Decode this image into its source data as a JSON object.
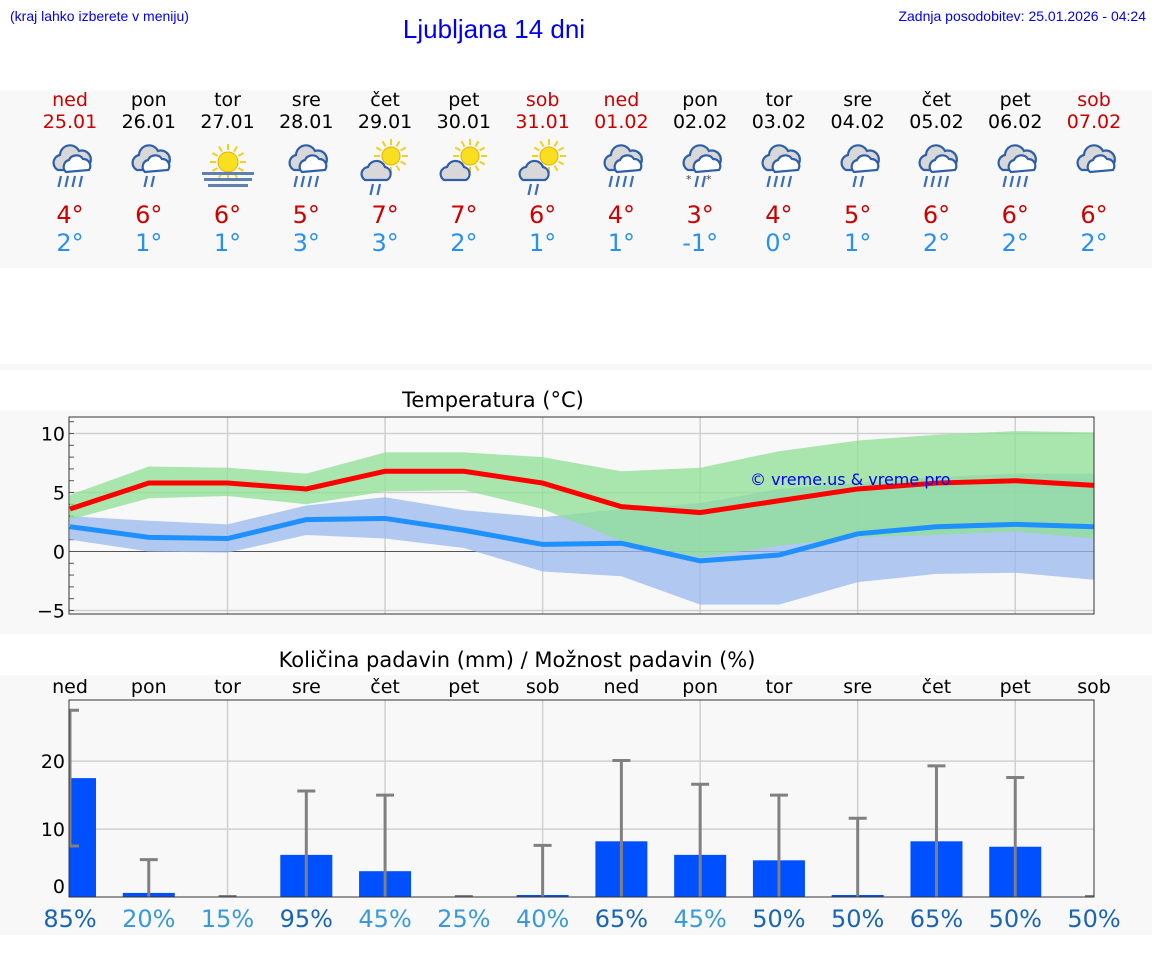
{
  "header": {
    "note": "(kraj lahko izberete v meniju)",
    "title": "Ljubljana 14 dni",
    "updated": "Zadnja posodobitev: 25.01.2026 - 04:24"
  },
  "colors": {
    "weekend": "#cc0000",
    "max": "#ff0000",
    "min": "#1e90ff",
    "max_band": "#acebaf",
    "min_band": "#aec8f2",
    "bar": "#0050ff",
    "error": "#808080",
    "link": "#0000ee"
  },
  "days": [
    {
      "name": "ned",
      "date": "25.01",
      "weekend": true,
      "icon": "heavy-rain",
      "max": "4°",
      "min": "2°"
    },
    {
      "name": "pon",
      "date": "26.01",
      "weekend": false,
      "icon": "rain",
      "max": "6°",
      "min": "1°"
    },
    {
      "name": "tor",
      "date": "27.01",
      "weekend": false,
      "icon": "sun-fog",
      "max": "6°",
      "min": "1°"
    },
    {
      "name": "sre",
      "date": "28.01",
      "weekend": false,
      "icon": "heavy-rain",
      "max": "5°",
      "min": "3°"
    },
    {
      "name": "čet",
      "date": "29.01",
      "weekend": false,
      "icon": "sun-cloud-rain",
      "max": "7°",
      "min": "3°"
    },
    {
      "name": "pet",
      "date": "30.01",
      "weekend": false,
      "icon": "sun-cloud",
      "max": "7°",
      "min": "2°"
    },
    {
      "name": "sob",
      "date": "31.01",
      "weekend": true,
      "icon": "sun-cloud-rain",
      "max": "6°",
      "min": "1°"
    },
    {
      "name": "ned",
      "date": "01.02",
      "weekend": true,
      "icon": "heavy-rain",
      "max": "4°",
      "min": "1°"
    },
    {
      "name": "pon",
      "date": "02.02",
      "weekend": false,
      "icon": "rain-snow",
      "max": "3°",
      "min": "-1°"
    },
    {
      "name": "tor",
      "date": "03.02",
      "weekend": false,
      "icon": "heavy-rain",
      "max": "4°",
      "min": "0°"
    },
    {
      "name": "sre",
      "date": "04.02",
      "weekend": false,
      "icon": "rain",
      "max": "5°",
      "min": "1°"
    },
    {
      "name": "čet",
      "date": "05.02",
      "weekend": false,
      "icon": "heavy-rain",
      "max": "6°",
      "min": "2°"
    },
    {
      "name": "pet",
      "date": "06.02",
      "weekend": false,
      "icon": "heavy-rain",
      "max": "6°",
      "min": "2°"
    },
    {
      "name": "sob",
      "date": "07.02",
      "weekend": true,
      "icon": "cloud",
      "max": "6°",
      "min": "2°"
    }
  ],
  "chart_data": [
    {
      "type": "line",
      "title": "Temperatura (°C)",
      "watermark": "© vreme.us & vreme.pro",
      "ylim": [
        -5.3,
        11.4
      ],
      "yticks": [
        -5,
        0,
        5,
        10
      ],
      "ytick_labels": [
        "−5",
        "0",
        "5",
        "10"
      ],
      "grid": true,
      "x": [
        "25.01",
        "26.01",
        "27.01",
        "28.01",
        "29.01",
        "30.01",
        "31.01",
        "01.02",
        "02.02",
        "03.02",
        "04.02",
        "05.02",
        "06.02",
        "07.02"
      ],
      "series": [
        {
          "role": "max",
          "values": [
            3.6,
            5.8,
            5.8,
            5.3,
            6.8,
            6.8,
            5.8,
            3.8,
            3.3,
            4.3,
            5.3,
            5.8,
            6.0,
            5.6
          ],
          "band_upper": [
            4.8,
            7.2,
            7.1,
            6.6,
            8.4,
            8.4,
            8.0,
            6.8,
            7.1,
            8.5,
            9.4,
            9.9,
            10.2,
            10.1
          ],
          "band_lower": [
            2.7,
            4.5,
            4.7,
            4.0,
            5.1,
            5.2,
            3.6,
            0.9,
            -0.5,
            0.5,
            1.2,
            1.4,
            1.7,
            1.1
          ]
        },
        {
          "role": "min",
          "values": [
            2.1,
            1.2,
            1.1,
            2.7,
            2.8,
            1.8,
            0.6,
            0.7,
            -0.8,
            -0.3,
            1.5,
            2.1,
            2.3,
            2.1
          ],
          "band_upper": [
            3.0,
            2.6,
            2.3,
            3.9,
            4.6,
            3.5,
            2.9,
            3.6,
            4.1,
            5.3,
            5.8,
            6.3,
            6.6,
            6.6
          ],
          "band_lower": [
            1.0,
            0.0,
            -0.1,
            1.4,
            1.1,
            0.3,
            -1.7,
            -2.1,
            -4.5,
            -4.5,
            -2.6,
            -1.9,
            -1.8,
            -2.4
          ]
        }
      ]
    },
    {
      "type": "bar",
      "title": "Količina padavin (mm) / Možnost padavin (%)",
      "ylim": [
        0,
        29
      ],
      "yticks": [
        0,
        10,
        20
      ],
      "grid": true,
      "categories": [
        "ned",
        "pon",
        "tor",
        "sre",
        "čet",
        "pet",
        "sob",
        "ned",
        "pon",
        "tor",
        "sre",
        "čet",
        "pet",
        "sob"
      ],
      "values": [
        17.5,
        0.6,
        0,
        6.2,
        3.8,
        0,
        0.2,
        8.2,
        6.2,
        5.4,
        0.2,
        8.2,
        7.4,
        0
      ],
      "error_low": [
        7.5,
        0,
        0,
        0,
        0,
        0,
        0,
        0,
        0,
        0,
        0,
        0,
        0,
        0
      ],
      "error_high": [
        27.5,
        5.5,
        0,
        15.6,
        15.0,
        0,
        7.6,
        20.1,
        16.6,
        15.0,
        11.6,
        19.3,
        17.6,
        0
      ],
      "probability": [
        "85%",
        "20%",
        "15%",
        "95%",
        "45%",
        "25%",
        "40%",
        "65%",
        "45%",
        "50%",
        "50%",
        "65%",
        "50%",
        "50%"
      ],
      "probability_colors": {
        "high": "#1a64b4",
        "low": "#3a9ad8"
      }
    }
  ]
}
